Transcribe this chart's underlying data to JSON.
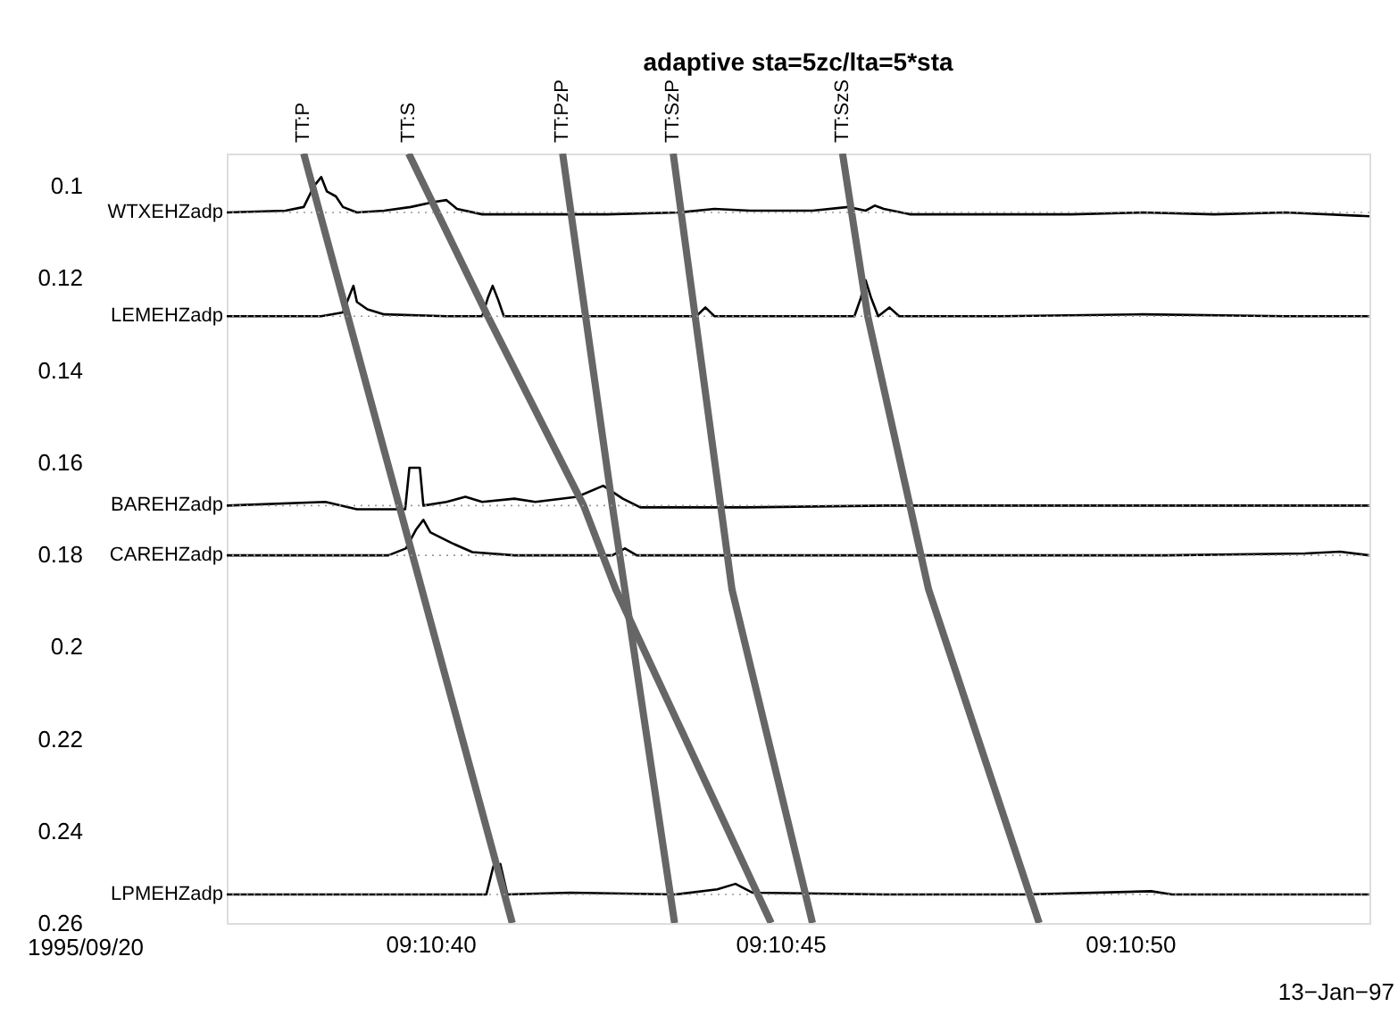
{
  "chart_data": {
    "type": "line",
    "title": "adaptive sta=5zc/lta=5*sta",
    "xlim": [
      "1995-09-20T09:10:37.09",
      "1995-09-20T09:10:53.42"
    ],
    "xticks": [
      {
        "value": "1995-09-20T09:10:40",
        "label": "09:10:40"
      },
      {
        "value": "1995-09-20T09:10:45",
        "label": "09:10:45"
      },
      {
        "value": "1995-09-20T09:10:50",
        "label": "09:10:50"
      }
    ],
    "ylim": [
      0.26,
      0.093
    ],
    "yticks": [
      0.1,
      0.12,
      0.14,
      0.16,
      0.18,
      0.2,
      0.22,
      0.24,
      0.26
    ],
    "grid": false,
    "marker": "none",
    "series": [
      {
        "name": "WTXEHZadp",
        "color": "#000000",
        "x": [
          "1995-09-20T09:10:37.09",
          "1995-09-20T09:10:37.93",
          "1995-09-20T09:10:38.19",
          "1995-09-20T09:10:38.34",
          "1995-09-20T09:10:38.44",
          "1995-09-20T09:10:38.52",
          "1995-09-20T09:10:38.65",
          "1995-09-20T09:10:38.75",
          "1995-09-20T09:10:38.95",
          "1995-09-20T09:10:39.34",
          "1995-09-20T09:10:39.72",
          "1995-09-20T09:10:40.05",
          "1995-09-20T09:10:40.23",
          "1995-09-20T09:10:40.38",
          "1995-09-20T09:10:40.74",
          "1995-09-20T09:10:41.51",
          "1995-09-20T09:10:42.53",
          "1995-09-20T09:10:43.55",
          "1995-09-20T09:10:44.06",
          "1995-09-20T09:10:44.57",
          "1995-09-20T09:10:45.46",
          "1995-09-20T09:10:45.97",
          "1995-09-20T09:10:46.22",
          "1995-09-20T09:10:46.35",
          "1995-09-20T09:10:46.48",
          "1995-09-20T09:10:46.86",
          "1995-09-20T09:10:48.14",
          "1995-09-20T09:10:49.16",
          "1995-09-20T09:10:50.18",
          "1995-09-20T09:10:51.20",
          "1995-09-20T09:10:52.22",
          "1995-09-20T09:10:53.42"
        ],
        "values": [
          0.1058,
          0.1054,
          0.1046,
          0.1,
          0.0981,
          0.1012,
          0.1023,
          0.1046,
          0.1058,
          0.1054,
          0.1046,
          0.1035,
          0.1031,
          0.105,
          0.1062,
          0.1062,
          0.1062,
          0.1058,
          0.105,
          0.1054,
          0.1054,
          0.1046,
          0.1054,
          0.1043,
          0.105,
          0.1062,
          0.1062,
          0.1062,
          0.1058,
          0.1062,
          0.1058,
          0.1066
        ]
      },
      {
        "name": "LEMEHZadp",
        "color": "#000000",
        "x": [
          "1995-09-20T09:10:37.09",
          "1995-09-20T09:10:38.44",
          "1995-09-20T09:10:38.75",
          "1995-09-20T09:10:38.85",
          "1995-09-20T09:10:38.90",
          "1995-09-20T09:10:38.95",
          "1995-09-20T09:10:39.10",
          "1995-09-20T09:10:39.34",
          "1995-09-20T09:10:40.23",
          "1995-09-20T09:10:40.74",
          "1995-09-20T09:10:40.82",
          "1995-09-20T09:10:40.89",
          "1995-09-20T09:10:40.97",
          "1995-09-20T09:10:41.05",
          "1995-09-20T09:10:42.53",
          "1995-09-20T09:10:43.80",
          "1995-09-20T09:10:43.93",
          "1995-09-20T09:10:44.06",
          "1995-09-20T09:10:46.06",
          "1995-09-20T09:10:46.15",
          "1995-09-20T09:10:46.22",
          "1995-09-20T09:10:46.30",
          "1995-09-20T09:10:46.40",
          "1995-09-20T09:10:46.56",
          "1995-09-20T09:10:46.70",
          "1995-09-20T09:10:48.14",
          "1995-09-20T09:10:50.18",
          "1995-09-20T09:10:52.22",
          "1995-09-20T09:10:53.42"
        ],
        "values": [
          0.1283,
          0.1283,
          0.1275,
          0.1236,
          0.1217,
          0.1252,
          0.1268,
          0.1279,
          0.1283,
          0.1283,
          0.1244,
          0.1217,
          0.1248,
          0.1283,
          0.1283,
          0.1283,
          0.1264,
          0.1283,
          0.1283,
          0.1244,
          0.1205,
          0.1244,
          0.1283,
          0.1264,
          0.1283,
          0.1283,
          0.1279,
          0.1283,
          0.1283
        ]
      },
      {
        "name": "BAREHZadp",
        "color": "#000000",
        "x": [
          "1995-09-20T09:10:37.09",
          "1995-09-20T09:10:38.50",
          "1995-09-20T09:10:38.95",
          "1995-09-20T09:10:39.64",
          "1995-09-20T09:10:39.70",
          "1995-09-20T09:10:39.85",
          "1995-09-20T09:10:39.90",
          "1995-09-20T09:10:40.23",
          "1995-09-20T09:10:40.50",
          "1995-09-20T09:10:40.74",
          "1995-09-20T09:10:41.20",
          "1995-09-20T09:10:41.50",
          "1995-09-20T09:10:42.10",
          "1995-09-20T09:10:42.47",
          "1995-09-20T09:10:42.75",
          "1995-09-20T09:10:43.00",
          "1995-09-20T09:10:44.50",
          "1995-09-20T09:10:46.50",
          "1995-09-20T09:10:48.50",
          "1995-09-20T09:10:50.50",
          "1995-09-20T09:10:52.50",
          "1995-09-20T09:10:53.42"
        ],
        "values": [
          0.1694,
          0.1686,
          0.1702,
          0.1702,
          0.1612,
          0.1612,
          0.1694,
          0.1686,
          0.1675,
          0.1686,
          0.1679,
          0.1686,
          0.1675,
          0.1651,
          0.1679,
          0.1698,
          0.1698,
          0.1694,
          0.1694,
          0.1694,
          0.1694,
          0.1694
        ]
      },
      {
        "name": "CAREHZadp",
        "color": "#000000",
        "x": [
          "1995-09-20T09:10:37.09",
          "1995-09-20T09:10:39.40",
          "1995-09-20T09:10:39.65",
          "1995-09-20T09:10:39.80",
          "1995-09-20T09:10:39.90",
          "1995-09-20T09:10:40.00",
          "1995-09-20T09:10:40.30",
          "1995-09-20T09:10:40.60",
          "1995-09-20T09:10:41.20",
          "1995-09-20T09:10:42.60",
          "1995-09-20T09:10:42.78",
          "1995-09-20T09:10:42.95",
          "1995-09-20T09:10:45.50",
          "1995-09-20T09:10:48.50",
          "1995-09-20T09:10:50.50",
          "1995-09-20T09:10:52.50",
          "1995-09-20T09:10:53.00",
          "1995-09-20T09:10:53.42"
        ],
        "values": [
          0.1802,
          0.1802,
          0.1787,
          0.1745,
          0.1725,
          0.1752,
          0.1775,
          0.1795,
          0.1802,
          0.1802,
          0.1787,
          0.1802,
          0.1802,
          0.1802,
          0.1802,
          0.1798,
          0.1794,
          0.1802
        ]
      },
      {
        "name": "LPMEHZadp",
        "color": "#000000",
        "x": [
          "1995-09-20T09:10:37.09",
          "1995-09-20T09:10:38.50",
          "1995-09-20T09:10:40.80",
          "1995-09-20T09:10:40.90",
          "1995-09-20T09:10:41.00",
          "1995-09-20T09:10:41.10",
          "1995-09-20T09:10:42.00",
          "1995-09-20T09:10:43.50",
          "1995-09-20T09:10:44.10",
          "1995-09-20T09:10:44.36",
          "1995-09-20T09:10:44.60",
          "1995-09-20T09:10:46.50",
          "1995-09-20T09:10:48.50",
          "1995-09-20T09:10:50.30",
          "1995-09-20T09:10:50.60",
          "1995-09-20T09:10:53.42"
        ],
        "values": [
          0.2538,
          0.2538,
          0.2538,
          0.2477,
          0.2472,
          0.2538,
          0.2534,
          0.2538,
          0.2527,
          0.2515,
          0.2534,
          0.2538,
          0.2538,
          0.2531,
          0.2538,
          0.2538
        ]
      },
      {
        "color": "#666666",
        "x": [
          "1995-09-20T09:10:38.19",
          "1995-09-20T09:10:41.17"
        ],
        "values": [
          0.093,
          0.26
        ]
      },
      {
        "color": "#666666",
        "x": [
          "1995-09-20T09:10:39.69",
          "1995-09-20T09:10:40.82",
          "1995-09-20T09:10:42.19",
          "1995-09-20T09:10:42.65",
          "1995-09-20T09:10:44.87"
        ],
        "values": [
          0.093,
          0.1283,
          0.1694,
          0.1876,
          0.26
        ]
      },
      {
        "color": "#666666",
        "x": [
          "1995-09-20T09:10:41.89",
          "1995-09-20T09:10:42.60",
          "1995-09-20T09:10:43.49"
        ],
        "values": [
          0.093,
          0.1694,
          0.26
        ]
      },
      {
        "color": "#666666",
        "x": [
          "1995-09-20T09:10:43.47",
          "1995-09-20T09:10:44.31",
          "1995-09-20T09:10:45.46"
        ],
        "values": [
          0.093,
          0.1876,
          0.26
        ]
      },
      {
        "color": "#666666",
        "x": [
          "1995-09-20T09:10:45.89",
          "1995-09-20T09:10:46.25",
          "1995-09-20T09:10:47.12",
          "1995-09-20T09:10:48.70"
        ],
        "values": [
          0.093,
          0.1283,
          0.1876,
          0.26
        ]
      }
    ],
    "ref_lines": [
      {
        "axis": "y",
        "value": 0.1058,
        "color": "#999999",
        "line_style": "dotted"
      },
      {
        "axis": "y",
        "value": 0.1283,
        "color": "#999999",
        "line_style": "dotted"
      },
      {
        "axis": "y",
        "value": 0.1694,
        "color": "#999999",
        "line_style": "dotted"
      },
      {
        "axis": "y",
        "value": 0.1802,
        "color": "#999999",
        "line_style": "dotted"
      },
      {
        "axis": "y",
        "value": 0.2538,
        "color": "#999999",
        "line_style": "dotted"
      }
    ],
    "annotations": [
      {
        "text": "TT:P",
        "x": "1995-09-20T09:10:38.19",
        "y": 0.093
      },
      {
        "text": "TT:S",
        "x": "1995-09-20T09:10:39.69",
        "y": 0.093
      },
      {
        "text": "TT:PzP",
        "x": "1995-09-20T09:10:41.89",
        "y": 0.093
      },
      {
        "text": "TT:SzP",
        "x": "1995-09-20T09:10:43.47",
        "y": 0.093
      },
      {
        "text": "TT:SzS",
        "x": "1995-09-20T09:10:45.89",
        "y": 0.093
      },
      "1995/09/20",
      "13−Jan−97"
    ]
  }
}
